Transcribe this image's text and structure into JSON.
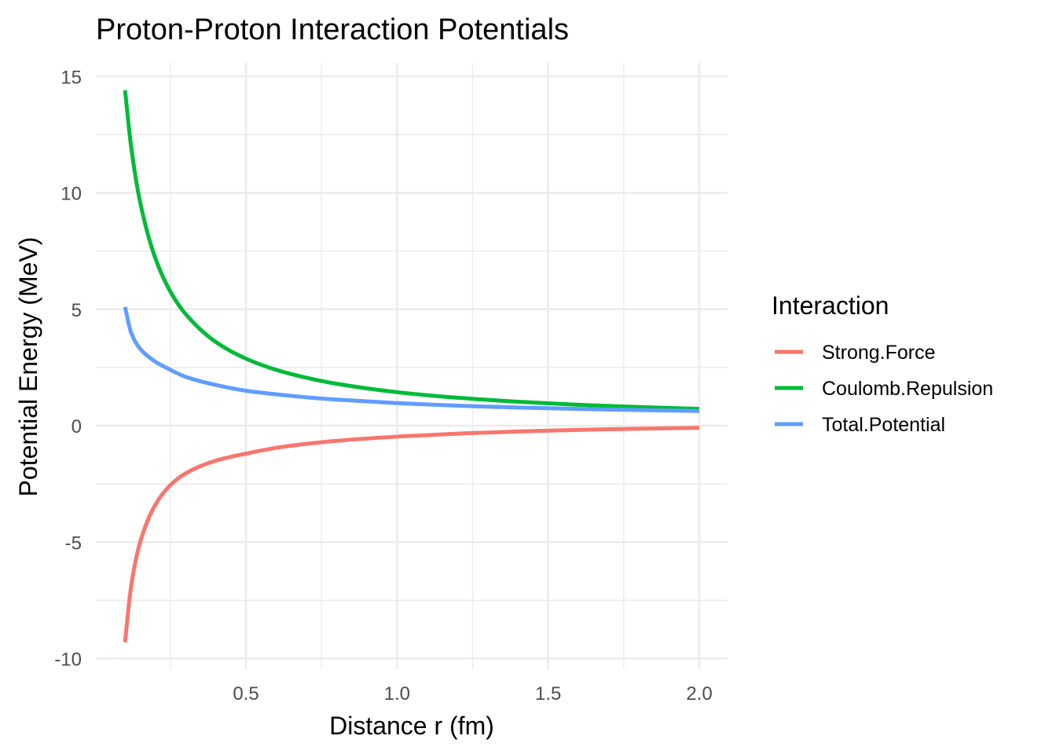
{
  "chart_data": {
    "type": "line",
    "title": "Proton-Proton Interaction Potentials",
    "xlabel": "Distance r (fm)",
    "ylabel": "Potential Energy (MeV)",
    "xlim": [
      0.1,
      2.0
    ],
    "ylim": [
      -10,
      15
    ],
    "x_ticks": [
      0.5,
      1.0,
      1.5,
      2.0
    ],
    "x_tick_labels": [
      "0.5",
      "1.0",
      "1.5",
      "2.0"
    ],
    "y_ticks": [
      -10,
      -5,
      0,
      5,
      10,
      15
    ],
    "y_tick_labels": [
      "-10",
      "-5",
      "0",
      "5",
      "10",
      "15"
    ],
    "grid": true,
    "legend": {
      "title": "Interaction",
      "position": "right"
    },
    "series": [
      {
        "name": "Strong.Force",
        "color": "#F8766D",
        "x": [
          0.1,
          0.12,
          0.15,
          0.2,
          0.25,
          0.3,
          0.4,
          0.5,
          0.6,
          0.7,
          0.8,
          1.0,
          1.2,
          1.4,
          1.6,
          1.8,
          2.0
        ],
        "values": [
          -9.3,
          -6.9,
          -5.0,
          -3.4,
          -2.55,
          -2.05,
          -1.5,
          -1.2,
          -0.95,
          -0.78,
          -0.65,
          -0.47,
          -0.34,
          -0.25,
          -0.18,
          -0.13,
          -0.09
        ]
      },
      {
        "name": "Coulomb.Repulsion",
        "color": "#00BA38",
        "x": [
          0.1,
          0.12,
          0.15,
          0.2,
          0.25,
          0.3,
          0.4,
          0.5,
          0.6,
          0.7,
          0.8,
          1.0,
          1.2,
          1.4,
          1.6,
          1.8,
          2.0
        ],
        "values": [
          14.4,
          12.0,
          9.6,
          7.2,
          5.76,
          4.8,
          3.6,
          2.88,
          2.4,
          2.06,
          1.8,
          1.44,
          1.2,
          1.03,
          0.9,
          0.8,
          0.72
        ]
      },
      {
        "name": "Total.Potential",
        "color": "#619CFF",
        "x": [
          0.1,
          0.12,
          0.15,
          0.2,
          0.25,
          0.3,
          0.4,
          0.5,
          0.6,
          0.7,
          0.8,
          1.0,
          1.2,
          1.4,
          1.6,
          1.8,
          2.0
        ],
        "values": [
          5.1,
          4.0,
          3.3,
          2.75,
          2.4,
          2.1,
          1.75,
          1.5,
          1.35,
          1.22,
          1.12,
          0.97,
          0.86,
          0.78,
          0.72,
          0.67,
          0.63
        ]
      }
    ]
  }
}
